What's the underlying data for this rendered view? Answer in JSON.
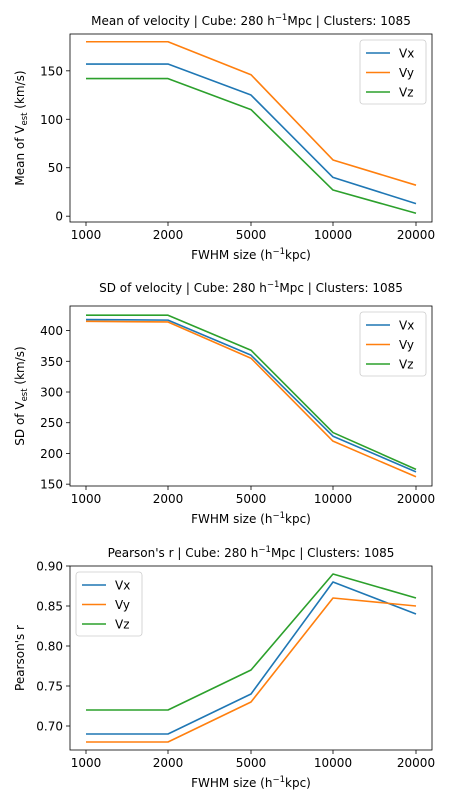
{
  "chart_data": [
    {
      "type": "line",
      "title": "Mean of velocity | Cube: 280 h⁻¹Mpc | Clusters: 1085",
      "xlabel": "FWHM size (h⁻¹kpc)",
      "ylabel": "Mean of V_est (km/s)",
      "categories": [
        "1000",
        "2000",
        "5000",
        "10000",
        "20000"
      ],
      "yticks": [
        0,
        50,
        100,
        150
      ],
      "ylim": [
        -6,
        188
      ],
      "legend": "top-right",
      "grid": false,
      "series": [
        {
          "name": "Vx",
          "color": "#1f77b4",
          "values": [
            157,
            157,
            125,
            40,
            13
          ]
        },
        {
          "name": "Vy",
          "color": "#ff7f0e",
          "values": [
            180,
            180,
            146,
            58,
            32
          ]
        },
        {
          "name": "Vz",
          "color": "#2ca02c",
          "values": [
            142,
            142,
            110,
            27,
            3
          ]
        }
      ]
    },
    {
      "type": "line",
      "title": "SD of velocity | Cube: 280 h⁻¹Mpc | Clusters: 1085",
      "xlabel": "FWHM size (h⁻¹kpc)",
      "ylabel": "SD of V_est (km/s)",
      "categories": [
        "1000",
        "2000",
        "5000",
        "10000",
        "20000"
      ],
      "yticks": [
        150,
        200,
        250,
        300,
        350,
        400
      ],
      "ylim": [
        147,
        440
      ],
      "legend": "top-right",
      "grid": false,
      "series": [
        {
          "name": "Vx",
          "color": "#1f77b4",
          "values": [
            418,
            417,
            360,
            228,
            170
          ]
        },
        {
          "name": "Vy",
          "color": "#ff7f0e",
          "values": [
            415,
            414,
            355,
            220,
            162
          ]
        },
        {
          "name": "Vz",
          "color": "#2ca02c",
          "values": [
            425,
            425,
            368,
            234,
            174
          ]
        }
      ]
    },
    {
      "type": "line",
      "title": "Pearson's r | Cube: 280 h⁻¹Mpc | Clusters: 1085",
      "xlabel": "FWHM size (h⁻¹kpc)",
      "ylabel": "Pearson's r",
      "categories": [
        "1000",
        "2000",
        "5000",
        "10000",
        "20000"
      ],
      "yticks": [
        0.7,
        0.75,
        0.8,
        0.85,
        0.9
      ],
      "yticklabels": [
        "0.70",
        "0.75",
        "0.80",
        "0.85",
        "0.90"
      ],
      "ylim": [
        0.67,
        0.9
      ],
      "legend": "top-left",
      "grid": false,
      "series": [
        {
          "name": "Vx",
          "color": "#1f77b4",
          "values": [
            0.69,
            0.69,
            0.74,
            0.88,
            0.84
          ]
        },
        {
          "name": "Vy",
          "color": "#ff7f0e",
          "values": [
            0.68,
            0.68,
            0.73,
            0.86,
            0.85
          ]
        },
        {
          "name": "Vz",
          "color": "#2ca02c",
          "values": [
            0.72,
            0.72,
            0.77,
            0.89,
            0.86
          ]
        }
      ]
    }
  ]
}
